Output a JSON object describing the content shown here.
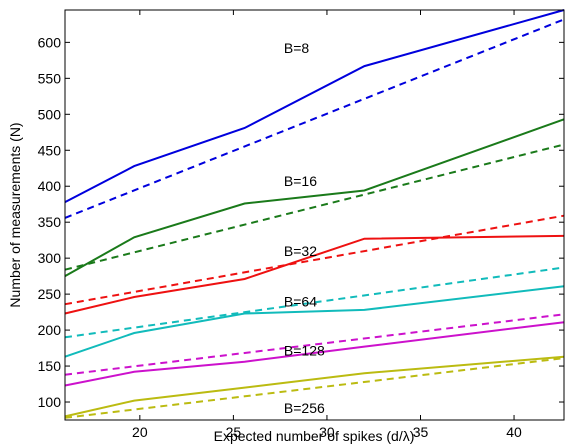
{
  "chart_data": {
    "type": "line",
    "title": "",
    "xlabel": "Expected number of spikes (d/λ)",
    "ylabel": "Number of measurements (N)",
    "xlim": [
      16,
      42.67
    ],
    "ylim": [
      75,
      645
    ],
    "xticks": [
      20,
      25,
      30,
      35,
      40
    ],
    "yticks": [
      100,
      150,
      200,
      250,
      300,
      350,
      400,
      450,
      500,
      550,
      600
    ],
    "grid": false,
    "legend": "none",
    "series": [
      {
        "color": "#0000dd",
        "style": "solid",
        "x": [
          16,
          19.7,
          25.6,
          32.0,
          42.67
        ],
        "y": [
          378,
          428,
          481,
          567,
          645
        ]
      },
      {
        "color": "#0000dd",
        "style": "dashed",
        "x": [
          16,
          42.67
        ],
        "y": [
          356,
          632
        ]
      },
      {
        "color": "#1a7a1a",
        "style": "solid",
        "x": [
          16,
          19.7,
          25.6,
          32.0,
          42.67
        ],
        "y": [
          275,
          329,
          376,
          394,
          493
        ]
      },
      {
        "color": "#1a7a1a",
        "style": "dashed",
        "x": [
          16,
          42.67
        ],
        "y": [
          284,
          458
        ]
      },
      {
        "color": "#ee1111",
        "style": "solid",
        "x": [
          16,
          19.7,
          25.6,
          32.0,
          42.67
        ],
        "y": [
          223,
          246,
          271,
          327,
          331
        ]
      },
      {
        "color": "#ee1111",
        "style": "dashed",
        "x": [
          16,
          42.67
        ],
        "y": [
          236,
          359
        ]
      },
      {
        "color": "#11bbbb",
        "style": "solid",
        "x": [
          16,
          19.7,
          25.6,
          32.0,
          42.67
        ],
        "y": [
          163,
          196,
          223,
          228,
          261
        ]
      },
      {
        "color": "#11bbbb",
        "style": "dashed",
        "x": [
          16,
          42.67
        ],
        "y": [
          190,
          287
        ]
      },
      {
        "color": "#cc11cc",
        "style": "solid",
        "x": [
          16,
          19.7,
          25.6,
          32.0,
          42.67
        ],
        "y": [
          123,
          142,
          156,
          177,
          211
        ]
      },
      {
        "color": "#cc11cc",
        "style": "dashed",
        "x": [
          16,
          42.67
        ],
        "y": [
          138,
          222
        ]
      },
      {
        "color": "#bbbb11",
        "style": "solid",
        "x": [
          16,
          19.7,
          25.6,
          32.0,
          42.67
        ],
        "y": [
          80,
          102,
          120,
          140,
          163
        ]
      },
      {
        "color": "#bbbb11",
        "style": "dashed",
        "x": [
          16,
          42.67
        ],
        "y": [
          78,
          161
        ]
      }
    ],
    "annotations": [
      {
        "text": "B=8",
        "x": 27.7,
        "y": 585
      },
      {
        "text": "B=16",
        "x": 27.7,
        "y": 400
      },
      {
        "text": "B=32",
        "x": 27.7,
        "y": 303
      },
      {
        "text": "B=64",
        "x": 27.7,
        "y": 233
      },
      {
        "text": "B=128",
        "x": 27.7,
        "y": 165
      },
      {
        "text": "B=256",
        "x": 27.7,
        "y": 85
      }
    ]
  }
}
